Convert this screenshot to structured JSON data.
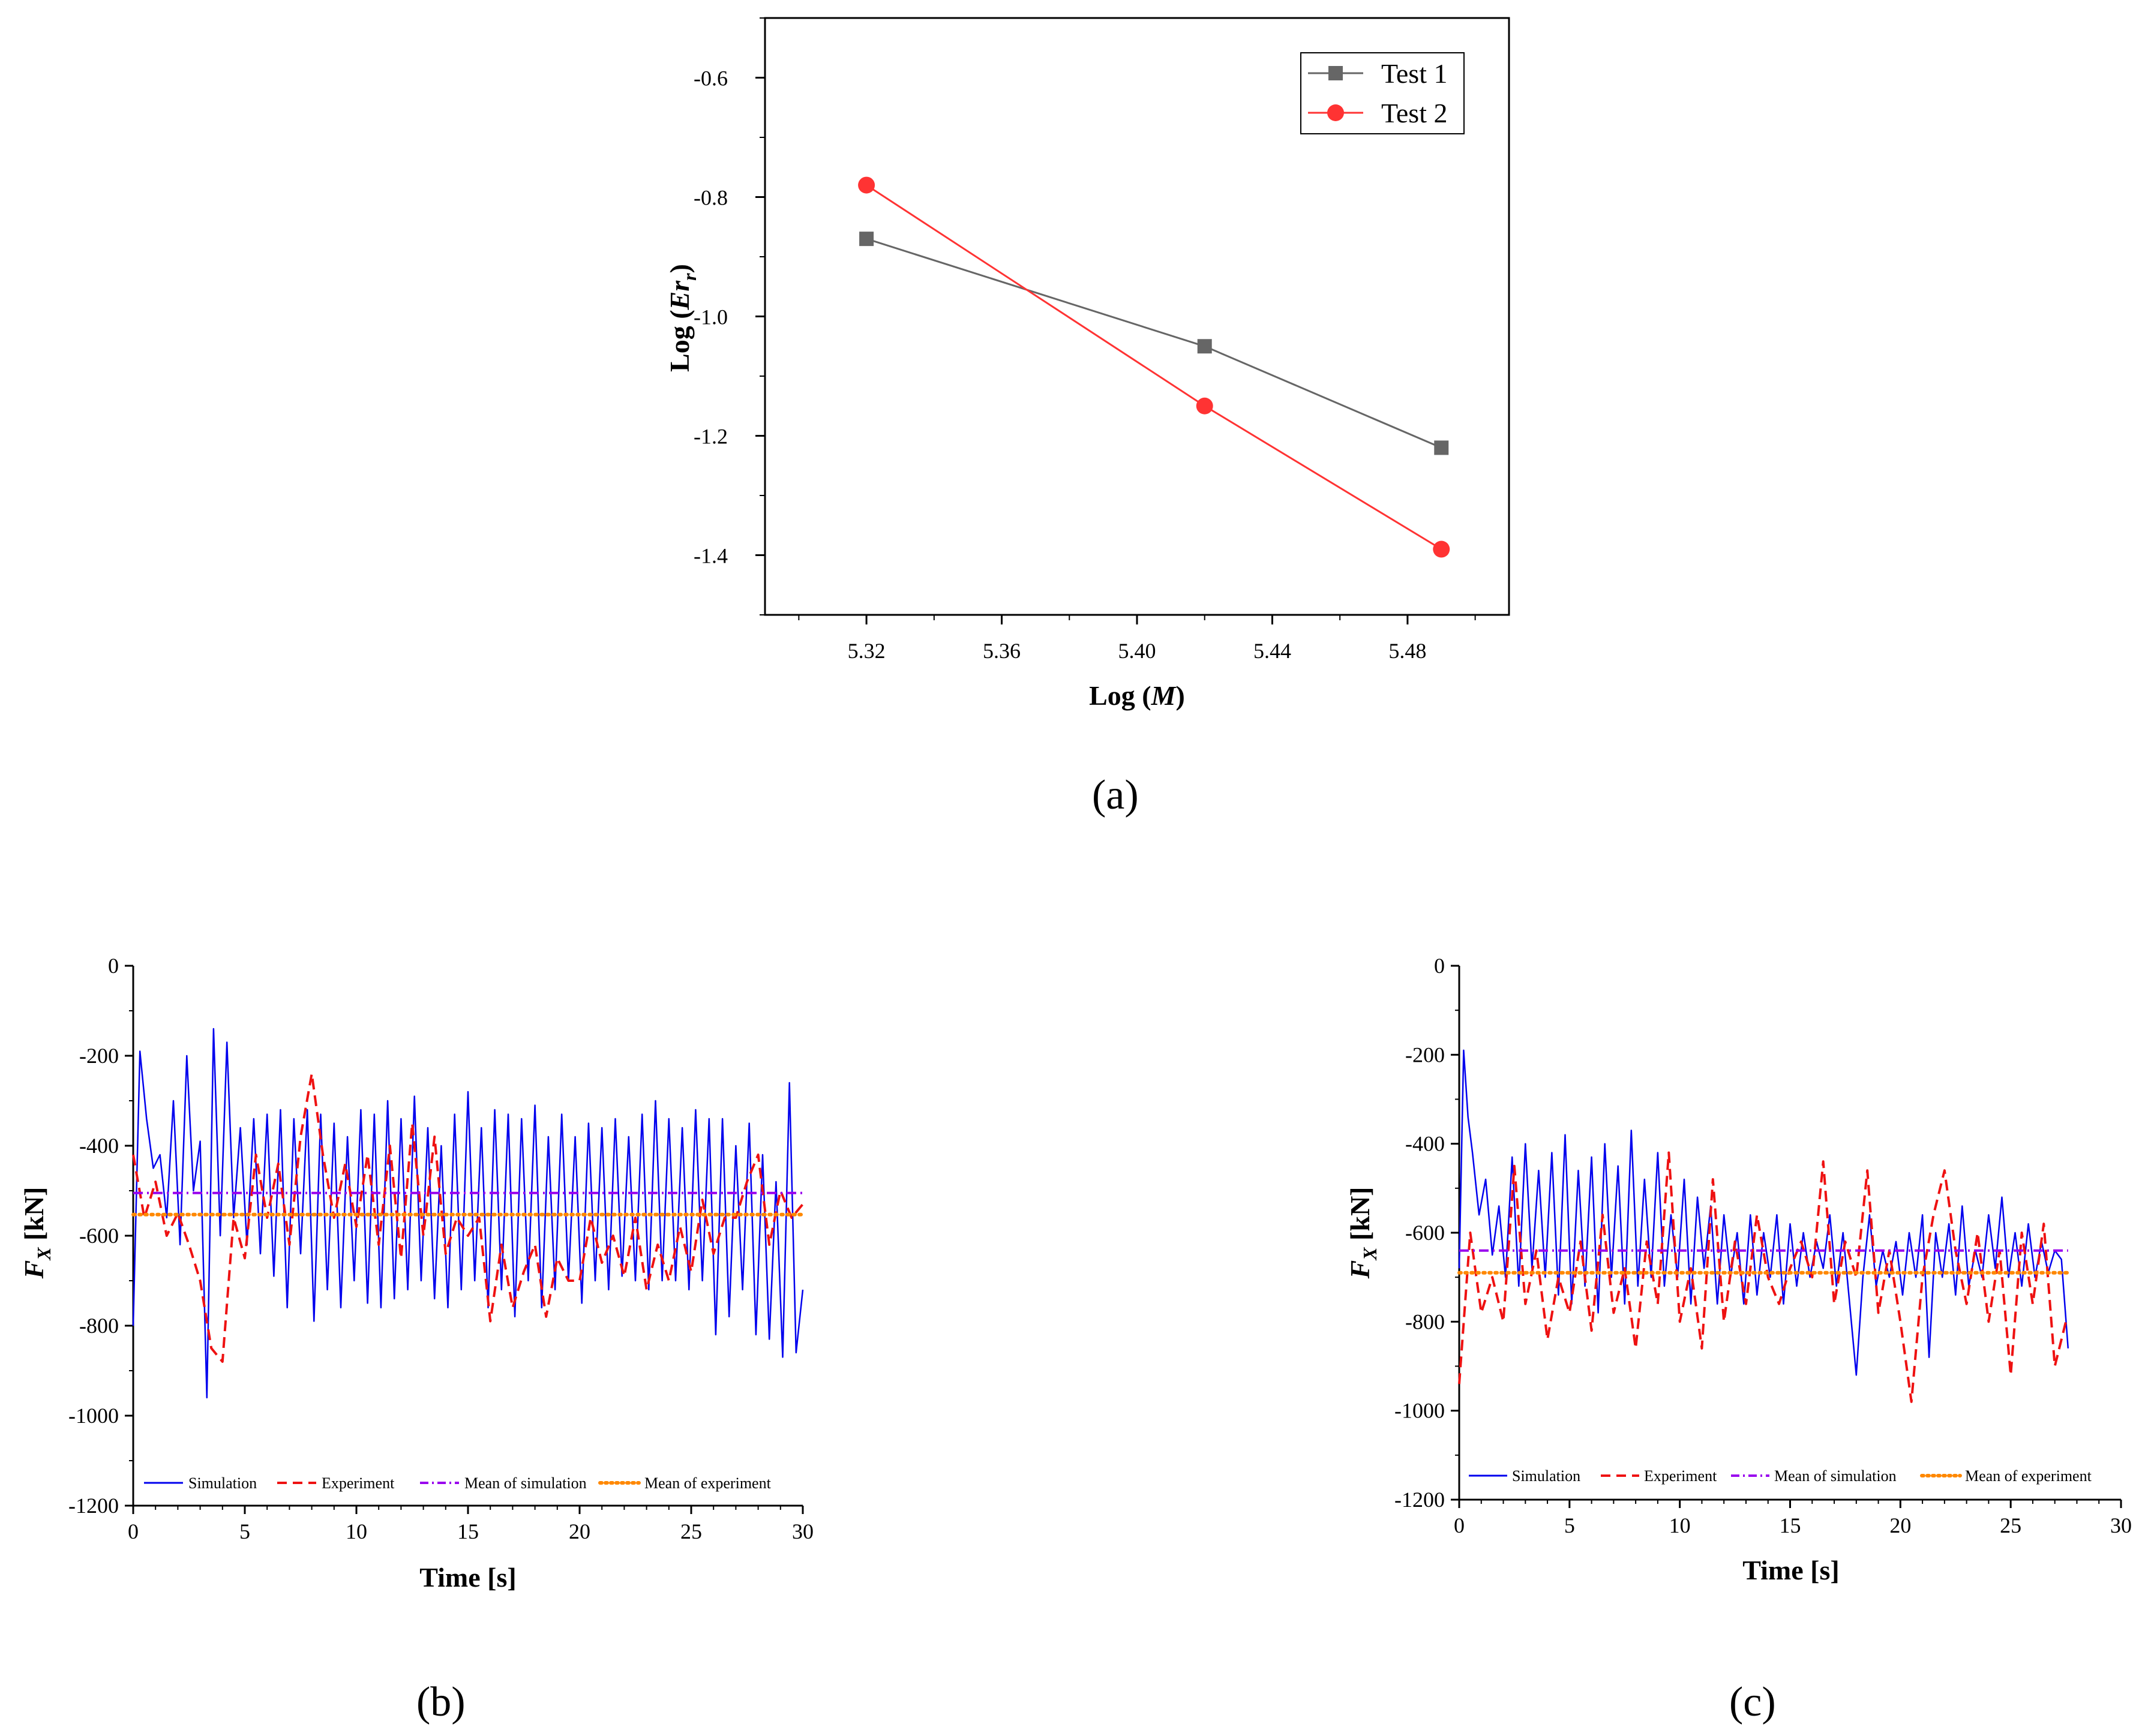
{
  "chart_data": [
    {
      "id": "a",
      "type": "line",
      "panel_label": "(a)",
      "xlabel": "Log (M)",
      "xlabel_prefix": "Log (",
      "xlabel_var": "M",
      "xlabel_suffix": ")",
      "ylabel": "Log (Er_r)",
      "ylabel_prefix": "Log (",
      "ylabel_var": "Er",
      "ylabel_sub": "r",
      "ylabel_suffix": ")",
      "xlim": [
        5.29,
        5.51
      ],
      "ylim": [
        -1.5,
        -0.5
      ],
      "xticks": [
        5.32,
        5.36,
        5.4,
        5.44,
        5.48
      ],
      "xtick_labels": [
        "5.32",
        "5.36",
        "5.40",
        "5.44",
        "5.48"
      ],
      "yticks": [
        -0.6,
        -0.8,
        -1.0,
        -1.2,
        -1.4
      ],
      "ytick_labels": [
        "-0.6",
        "-0.8",
        "-1.0",
        "-1.2",
        "-1.4"
      ],
      "legend_position": "top-right",
      "series": [
        {
          "name": "Test 1",
          "color": "#666666",
          "marker": "square",
          "x": [
            5.32,
            5.42,
            5.49
          ],
          "y": [
            -0.87,
            -1.05,
            -1.22
          ]
        },
        {
          "name": "Test 2",
          "color": "#ff3333",
          "marker": "circle",
          "x": [
            5.32,
            5.42,
            5.49
          ],
          "y": [
            -0.78,
            -1.15,
            -1.39
          ]
        }
      ]
    },
    {
      "id": "b",
      "type": "line",
      "panel_label": "(b)",
      "xlabel": "Time [s]",
      "ylabel": "F_X [kN]",
      "ylabel_var": "F",
      "ylabel_sub": "X",
      "ylabel_suffix": " [kN]",
      "xlim": [
        0,
        30
      ],
      "ylim": [
        -1200,
        0
      ],
      "xticks": [
        0,
        5,
        10,
        15,
        20,
        25,
        30
      ],
      "xtick_labels": [
        "0",
        "5",
        "10",
        "15",
        "20",
        "25",
        "30"
      ],
      "yticks": [
        0,
        -200,
        -400,
        -600,
        -800,
        -1000,
        -1200
      ],
      "ytick_labels": [
        "0",
        "-200",
        "-400",
        "-600",
        "-800",
        "-1000",
        "-1200"
      ],
      "legend_position": "bottom",
      "series": [
        {
          "name": "Simulation",
          "color": "#0000ee",
          "style": "solid",
          "t": [
            0,
            0.3,
            0.6,
            0.9,
            1.2,
            1.5,
            1.8,
            2.1,
            2.4,
            2.7,
            3.0,
            3.3,
            3.6,
            3.9,
            4.2,
            4.5,
            4.8,
            5.1,
            5.4,
            5.7,
            6.0,
            6.3,
            6.6,
            6.9,
            7.2,
            7.5,
            7.8,
            8.1,
            8.4,
            8.7,
            9.0,
            9.3,
            9.6,
            9.9,
            10.2,
            10.5,
            10.8,
            11.1,
            11.4,
            11.7,
            12.0,
            12.3,
            12.6,
            12.9,
            13.2,
            13.5,
            13.8,
            14.1,
            14.4,
            14.7,
            15.0,
            15.3,
            15.6,
            15.9,
            16.2,
            16.5,
            16.8,
            17.1,
            17.4,
            17.7,
            18.0,
            18.3,
            18.6,
            18.9,
            19.2,
            19.5,
            19.8,
            20.1,
            20.4,
            20.7,
            21.0,
            21.3,
            21.6,
            21.9,
            22.2,
            22.5,
            22.8,
            23.1,
            23.4,
            23.7,
            24.0,
            24.3,
            24.6,
            24.9,
            25.2,
            25.5,
            25.8,
            26.1,
            26.4,
            26.7,
            27.0,
            27.3,
            27.6,
            27.9,
            28.2,
            28.5,
            28.8,
            29.1,
            29.4,
            29.7,
            30.0
          ],
          "v": [
            -800,
            -190,
            -340,
            -450,
            -420,
            -560,
            -300,
            -620,
            -200,
            -500,
            -390,
            -960,
            -140,
            -600,
            -170,
            -560,
            -360,
            -620,
            -340,
            -640,
            -330,
            -690,
            -320,
            -760,
            -340,
            -640,
            -320,
            -790,
            -330,
            -720,
            -350,
            -760,
            -380,
            -700,
            -320,
            -750,
            -330,
            -760,
            -300,
            -740,
            -340,
            -720,
            -290,
            -700,
            -360,
            -740,
            -400,
            -760,
            -330,
            -720,
            -280,
            -700,
            -360,
            -760,
            -320,
            -720,
            -330,
            -780,
            -340,
            -700,
            -310,
            -760,
            -380,
            -720,
            -330,
            -700,
            -380,
            -750,
            -350,
            -700,
            -360,
            -720,
            -340,
            -690,
            -380,
            -700,
            -330,
            -720,
            -300,
            -700,
            -340,
            -700,
            -360,
            -720,
            -320,
            -700,
            -340,
            -820,
            -340,
            -780,
            -400,
            -720,
            -350,
            -820,
            -420,
            -830,
            -480,
            -870,
            -260,
            -860,
            -720
          ]
        },
        {
          "name": "Experiment",
          "color": "#ee1111",
          "style": "dashed",
          "t": [
            0,
            0.5,
            1.0,
            1.5,
            2.0,
            2.5,
            3.0,
            3.5,
            4.0,
            4.5,
            5.0,
            5.5,
            6.0,
            6.5,
            7.0,
            7.5,
            8.0,
            8.5,
            9.0,
            9.5,
            10.0,
            10.5,
            11.0,
            11.5,
            12.0,
            12.5,
            13.0,
            13.5,
            14.0,
            14.5,
            15.0,
            15.5,
            16.0,
            16.5,
            17.0,
            17.5,
            18.0,
            18.5,
            19.0,
            19.5,
            20.0,
            20.5,
            21.0,
            21.5,
            22.0,
            22.5,
            23.0,
            23.5,
            24.0,
            24.5,
            25.0,
            25.5,
            26.0,
            26.5,
            27.0,
            27.5,
            28.0,
            28.5,
            29.0,
            29.5,
            30.0
          ],
          "v": [
            -420,
            -560,
            -480,
            -600,
            -550,
            -620,
            -700,
            -850,
            -880,
            -560,
            -650,
            -420,
            -560,
            -440,
            -620,
            -380,
            -240,
            -420,
            -560,
            -440,
            -580,
            -420,
            -620,
            -400,
            -650,
            -350,
            -600,
            -380,
            -640,
            -560,
            -600,
            -560,
            -790,
            -620,
            -760,
            -680,
            -620,
            -780,
            -650,
            -700,
            -700,
            -560,
            -660,
            -600,
            -690,
            -560,
            -720,
            -620,
            -700,
            -580,
            -680,
            -520,
            -640,
            -560,
            -560,
            -480,
            -420,
            -620,
            -500,
            -560,
            -530
          ]
        },
        {
          "name": "Mean of simulation",
          "color": "#9900ee",
          "style": "dashdot",
          "mean": -505
        },
        {
          "name": "Mean of experiment",
          "color": "#ff8800",
          "style": "dotted",
          "mean": -553
        }
      ]
    },
    {
      "id": "c",
      "type": "line",
      "panel_label": "(c)",
      "xlabel": "Time [s]",
      "ylabel": "F_X [kN]",
      "ylabel_var": "F",
      "ylabel_sub": "X",
      "ylabel_suffix": " [kN]",
      "xlim": [
        0,
        30
      ],
      "ylim": [
        -1200,
        0
      ],
      "xticks": [
        0,
        5,
        10,
        15,
        20,
        25,
        30
      ],
      "xtick_labels": [
        "0",
        "5",
        "10",
        "15",
        "20",
        "25",
        "30"
      ],
      "yticks": [
        0,
        -200,
        -400,
        -600,
        -800,
        -1000,
        -1200
      ],
      "ytick_labels": [
        "0",
        "-200",
        "-400",
        "-600",
        "-800",
        "-1000",
        "-1200"
      ],
      "legend_position": "bottom",
      "series": [
        {
          "name": "Simulation",
          "color": "#0000ee",
          "style": "solid",
          "t": [
            0,
            0.2,
            0.4,
            0.6,
            0.9,
            1.2,
            1.5,
            1.8,
            2.1,
            2.4,
            2.7,
            3.0,
            3.3,
            3.6,
            3.9,
            4.2,
            4.5,
            4.8,
            5.1,
            5.4,
            5.7,
            6.0,
            6.3,
            6.6,
            6.9,
            7.2,
            7.5,
            7.8,
            8.1,
            8.4,
            8.7,
            9.0,
            9.3,
            9.6,
            9.9,
            10.2,
            10.5,
            10.8,
            11.1,
            11.4,
            11.7,
            12.0,
            12.3,
            12.6,
            12.9,
            13.2,
            13.5,
            13.8,
            14.1,
            14.4,
            14.7,
            15.0,
            15.3,
            15.6,
            15.9,
            16.2,
            16.5,
            16.8,
            17.1,
            17.4,
            17.7,
            18.0,
            18.3,
            18.6,
            18.9,
            19.2,
            19.5,
            19.8,
            20.1,
            20.4,
            20.7,
            21.0,
            21.3,
            21.6,
            21.9,
            22.2,
            22.5,
            22.8,
            23.1,
            23.4,
            23.7,
            24.0,
            24.3,
            24.6,
            24.9,
            25.2,
            25.5,
            25.8,
            26.1,
            26.4,
            26.7,
            27.0,
            27.3,
            27.6
          ],
          "v": [
            -680,
            -190,
            -340,
            -420,
            -560,
            -480,
            -650,
            -540,
            -700,
            -430,
            -720,
            -400,
            -680,
            -460,
            -700,
            -420,
            -740,
            -380,
            -760,
            -460,
            -720,
            -430,
            -780,
            -400,
            -700,
            -450,
            -760,
            -370,
            -720,
            -480,
            -700,
            -420,
            -720,
            -560,
            -700,
            -480,
            -760,
            -520,
            -680,
            -540,
            -760,
            -560,
            -700,
            -600,
            -760,
            -560,
            -740,
            -600,
            -700,
            -560,
            -760,
            -580,
            -720,
            -600,
            -700,
            -620,
            -680,
            -560,
            -720,
            -600,
            -760,
            -920,
            -700,
            -560,
            -720,
            -640,
            -700,
            -620,
            -740,
            -600,
            -700,
            -560,
            -880,
            -600,
            -700,
            -580,
            -740,
            -540,
            -720,
            -640,
            -700,
            -560,
            -680,
            -520,
            -700,
            -600,
            -720,
            -580,
            -700,
            -620,
            -690,
            -640,
            -660,
            -860
          ]
        },
        {
          "name": "Experiment",
          "color": "#ee1111",
          "style": "dashed",
          "t": [
            0,
            0.5,
            1.0,
            1.5,
            2.0,
            2.5,
            3.0,
            3.5,
            4.0,
            4.5,
            5.0,
            5.5,
            6.0,
            6.5,
            7.0,
            7.5,
            8.0,
            8.5,
            9.0,
            9.5,
            10.0,
            10.5,
            11.0,
            11.5,
            12.0,
            12.5,
            13.0,
            13.5,
            14.0,
            14.5,
            15.0,
            15.5,
            16.0,
            16.5,
            17.0,
            17.5,
            18.0,
            18.5,
            19.0,
            19.5,
            20.0,
            20.5,
            21.0,
            21.5,
            22.0,
            22.5,
            23.0,
            23.5,
            24.0,
            24.5,
            25.0,
            25.5,
            26.0,
            26.5,
            27.0,
            27.5
          ],
          "v": [
            -940,
            -600,
            -780,
            -700,
            -800,
            -450,
            -760,
            -640,
            -840,
            -700,
            -780,
            -620,
            -820,
            -560,
            -780,
            -680,
            -860,
            -620,
            -760,
            -420,
            -800,
            -680,
            -860,
            -480,
            -800,
            -620,
            -760,
            -560,
            -700,
            -760,
            -680,
            -620,
            -700,
            -440,
            -760,
            -620,
            -700,
            -460,
            -780,
            -640,
            -800,
            -980,
            -700,
            -560,
            -460,
            -640,
            -760,
            -600,
            -800,
            -640,
            -920,
            -600,
            -760,
            -580,
            -900,
            -800
          ]
        },
        {
          "name": "Mean of simulation",
          "color": "#9900ee",
          "style": "dashdot",
          "mean": -640
        },
        {
          "name": "Mean of experiment",
          "color": "#ff8800",
          "style": "dotted",
          "mean": -690
        }
      ]
    }
  ]
}
